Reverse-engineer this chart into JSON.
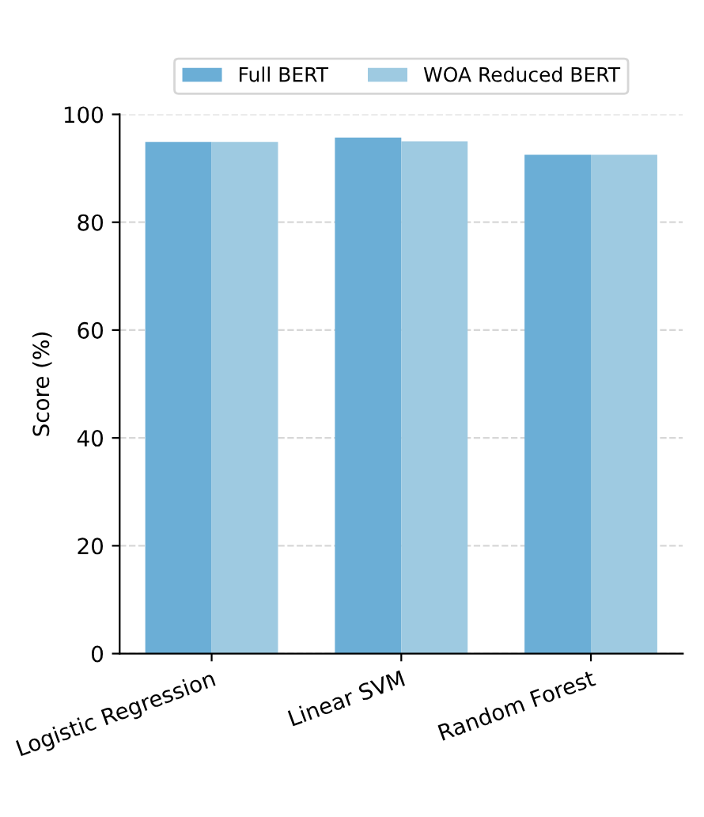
{
  "chart_data": {
    "type": "bar",
    "ylabel": "Score (%)",
    "categories": [
      "Logistic Regression",
      "Linear SVM",
      "Random Forest"
    ],
    "series": [
      {
        "name": "Full BERT",
        "color": "#6baed6",
        "values": [
          94.9,
          95.7,
          92.5
        ]
      },
      {
        "name": "WOA Reduced BERT",
        "color": "#9ecae1",
        "values": [
          94.9,
          95.0,
          92.5
        ]
      }
    ],
    "ylim": [
      0,
      100
    ],
    "yticks": [
      0,
      20,
      40,
      60,
      80,
      100
    ],
    "grid": "y",
    "legend": "top"
  }
}
